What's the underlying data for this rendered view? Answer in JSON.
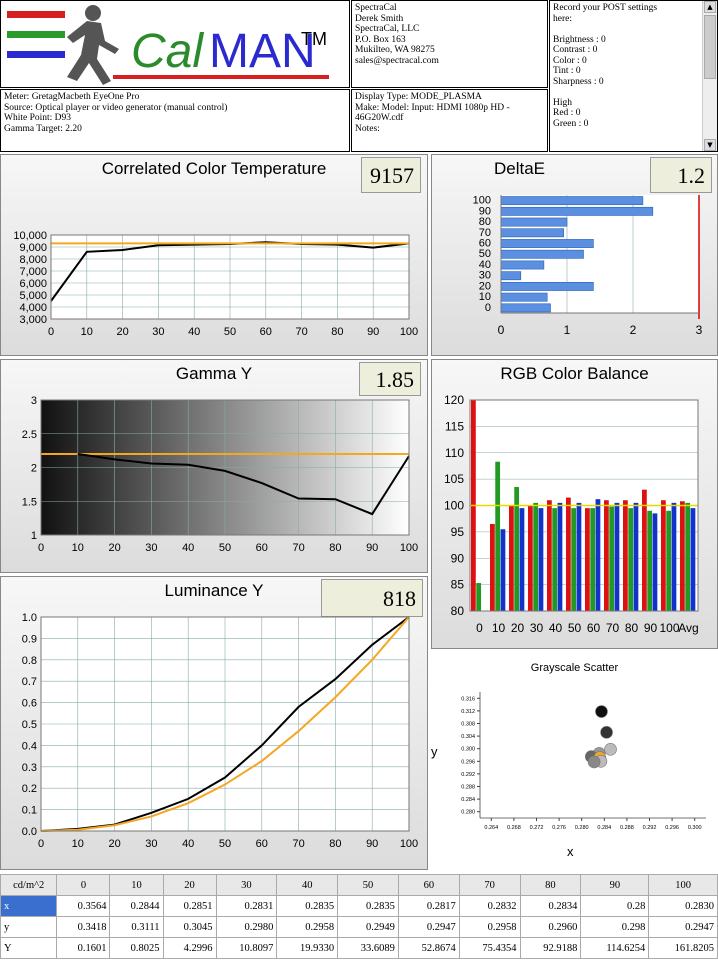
{
  "logo": {
    "text": "CalMAN",
    "tm": "TM"
  },
  "contact": [
    "SpectraCal",
    "Derek Smith",
    "SpectraCal, LLC",
    "P.O. Box 163",
    "Mukilteo, WA 98275",
    "sales@spectracal.com"
  ],
  "post_notes": [
    "Record your POST settings",
    "here:",
    "",
    "Brightness : 0",
    "Contrast   : 0",
    "Color        : 0",
    "Tint          : 0",
    "Sharpness : 0",
    "",
    "High",
    "Red    : 0",
    "Green : 0"
  ],
  "meter_info": [
    "Meter: GretagMacbeth EyeOne Pro",
    "Source: Optical player or video generator (manual control)",
    "White Point: D93",
    "Gamma Target: 2.20"
  ],
  "display_info": [
    "Display Type: MODE_PLASMA",
    "Make: Model: Input: HDMI 1080p HD    -",
    " 46G20W.cdf",
    "Notes:"
  ],
  "panels": {
    "cct": {
      "title": "Correlated Color Temperature",
      "value": "9157"
    },
    "deltae": {
      "title": "DeltaE",
      "value": "1.2"
    },
    "gamma": {
      "title": "Gamma Y",
      "value": "1.85"
    },
    "rgb": {
      "title": "RGB Color Balance"
    },
    "lum": {
      "title": "Luminance Y",
      "value": "818"
    },
    "scatter": {
      "title": "Grayscale Scatter",
      "xlabel": "x",
      "ylabel": "y"
    }
  },
  "chart_data": [
    {
      "id": "cct",
      "type": "line",
      "title": "Correlated Color Temperature",
      "x": [
        0,
        10,
        20,
        30,
        40,
        50,
        60,
        70,
        80,
        90,
        100
      ],
      "xlim": [
        0,
        100
      ],
      "ylim": [
        3000,
        10000
      ],
      "yticks": [
        3000,
        4000,
        5000,
        6000,
        7000,
        8000,
        9000,
        10000
      ],
      "ytick_labels": [
        "3,000",
        "4,000",
        "5,000",
        "6,000",
        "7,000",
        "8,000",
        "9,000",
        "10,000"
      ],
      "series": [
        {
          "values": [
            4500,
            8600,
            8750,
            9150,
            9200,
            9250,
            9400,
            9250,
            9200,
            8950,
            9300
          ],
          "color": "#000000"
        },
        {
          "values": [
            9300,
            9300,
            9300,
            9300,
            9300,
            9300,
            9300,
            9300,
            9300,
            9300,
            9300
          ],
          "color": "#f5a623"
        }
      ]
    },
    {
      "id": "deltae",
      "type": "bar",
      "orientation": "horizontal",
      "title": "DeltaE",
      "categories": [
        0,
        10,
        20,
        30,
        40,
        50,
        60,
        70,
        80,
        90,
        100
      ],
      "values": [
        0.75,
        0.7,
        1.4,
        0.3,
        0.65,
        1.25,
        1.4,
        0.95,
        1.0,
        2.3,
        2.15
      ],
      "xlim": [
        0,
        3
      ],
      "xticks": [
        0,
        1,
        2,
        3
      ],
      "limit_line": 3,
      "color": "#5b8fe0"
    },
    {
      "id": "gamma",
      "type": "line",
      "title": "Gamma Y",
      "x": [
        10,
        20,
        30,
        40,
        50,
        60,
        70,
        80,
        90,
        100
      ],
      "xlim": [
        0,
        100
      ],
      "ylim": [
        1,
        3
      ],
      "yticks": [
        1,
        1.5,
        2,
        2.5,
        3
      ],
      "series": [
        {
          "values": [
            2.2,
            2.12,
            2.06,
            2.04,
            1.95,
            1.77,
            1.54,
            1.53,
            1.31,
            2.17
          ],
          "color": "#000000"
        }
      ],
      "target": 2.2,
      "target_color": "#f5a623"
    },
    {
      "id": "rgb",
      "type": "bar",
      "title": "RGB Color Balance",
      "categories": [
        "0",
        "10",
        "20",
        "30",
        "40",
        "50",
        "60",
        "70",
        "80",
        "90",
        "100",
        "Avg"
      ],
      "ylim": [
        80,
        120
      ],
      "yticks": [
        80,
        85,
        90,
        95,
        100,
        105,
        110,
        115,
        120
      ],
      "reference": 100,
      "series": [
        {
          "name": "Red",
          "color": "#dd1111",
          "values": [
            120,
            96.5,
            100,
            100,
            101,
            101.5,
            99.5,
            101,
            101,
            103,
            101,
            100.8
          ]
        },
        {
          "name": "Green",
          "color": "#229922",
          "values": [
            85.3,
            108.3,
            103.5,
            100.5,
            99.5,
            99.5,
            99.5,
            99.8,
            99.5,
            99,
            99,
            100.5
          ]
        },
        {
          "name": "Blue",
          "color": "#1133cc",
          "values": [
            80,
            95.5,
            99.5,
            99.5,
            100.5,
            100.5,
            101.2,
            100.5,
            100.5,
            98.5,
            100.5,
            99.5
          ]
        }
      ]
    },
    {
      "id": "lum",
      "type": "line",
      "title": "Luminance Y",
      "x": [
        0,
        10,
        20,
        30,
        40,
        50,
        60,
        70,
        80,
        90,
        100
      ],
      "xlim": [
        0,
        100
      ],
      "ylim": [
        0,
        1
      ],
      "yticks": [
        0,
        0.1,
        0.2,
        0.3,
        0.4,
        0.5,
        0.6,
        0.7,
        0.8,
        0.9,
        1
      ],
      "ytick_labels": [
        "0.0",
        "0.1",
        "0.2",
        "0.3",
        "0.4",
        "0.5",
        "0.6",
        "0.7",
        "0.8",
        "0.9",
        "1.0"
      ],
      "series": [
        {
          "values": [
            0,
            0.01,
            0.03,
            0.085,
            0.15,
            0.25,
            0.4,
            0.58,
            0.71,
            0.87,
            1.0
          ],
          "color": "#000000"
        },
        {
          "values": [
            0,
            0.006,
            0.027,
            0.068,
            0.13,
            0.217,
            0.327,
            0.467,
            0.625,
            0.8,
            1.0
          ],
          "color": "#f5a623"
        }
      ]
    },
    {
      "id": "scatter",
      "type": "scatter",
      "title": "Grayscale Scatter",
      "xlabel": "x",
      "ylabel": "y",
      "xlim": [
        0.262,
        0.302
      ],
      "ylim": [
        0.278,
        0.318
      ],
      "xticks": [
        0.264,
        0.268,
        0.272,
        0.276,
        0.28,
        0.284,
        0.288,
        0.292,
        0.296,
        0.3
      ],
      "yticks": [
        0.28,
        0.284,
        0.288,
        0.292,
        0.296,
        0.3,
        0.304,
        0.308,
        0.312,
        0.316
      ],
      "points": [
        {
          "x": 0.2835,
          "y": 0.3118,
          "color": "#111111"
        },
        {
          "x": 0.2844,
          "y": 0.3052,
          "color": "#333333"
        },
        {
          "x": 0.2851,
          "y": 0.2998,
          "color": "#bbbbbb"
        },
        {
          "x": 0.2831,
          "y": 0.2985,
          "color": "#999999"
        },
        {
          "x": 0.2817,
          "y": 0.2975,
          "color": "#666666"
        },
        {
          "x": 0.2832,
          "y": 0.2972,
          "color": "#f5a623"
        },
        {
          "x": 0.2834,
          "y": 0.296,
          "color": "#bbbbbb"
        },
        {
          "x": 0.2822,
          "y": 0.2958,
          "color": "#888888"
        }
      ]
    },
    {
      "id": "table",
      "type": "table",
      "headers": [
        "cd/m^2",
        "0",
        "10",
        "20",
        "30",
        "40",
        "50",
        "60",
        "70",
        "80",
        "90",
        "100"
      ],
      "rows": [
        {
          "label": "x",
          "values": [
            "0.3564",
            "0.2844",
            "0.2851",
            "0.2831",
            "0.2835",
            "0.2835",
            "0.2817",
            "0.2832",
            "0.2834",
            "0.28",
            "0.2830"
          ]
        },
        {
          "label": "y",
          "values": [
            "0.3418",
            "0.3111",
            "0.3045",
            "0.2980",
            "0.2958",
            "0.2949",
            "0.2947",
            "0.2958",
            "0.2960",
            "0.298",
            "0.2947"
          ]
        },
        {
          "label": "Y",
          "values": [
            "0.1601",
            "0.8025",
            "4.2996",
            "10.8097",
            "19.9330",
            "33.6089",
            "52.8674",
            "75.4354",
            "92.9188",
            "114.6254",
            "161.8205"
          ]
        }
      ]
    }
  ]
}
